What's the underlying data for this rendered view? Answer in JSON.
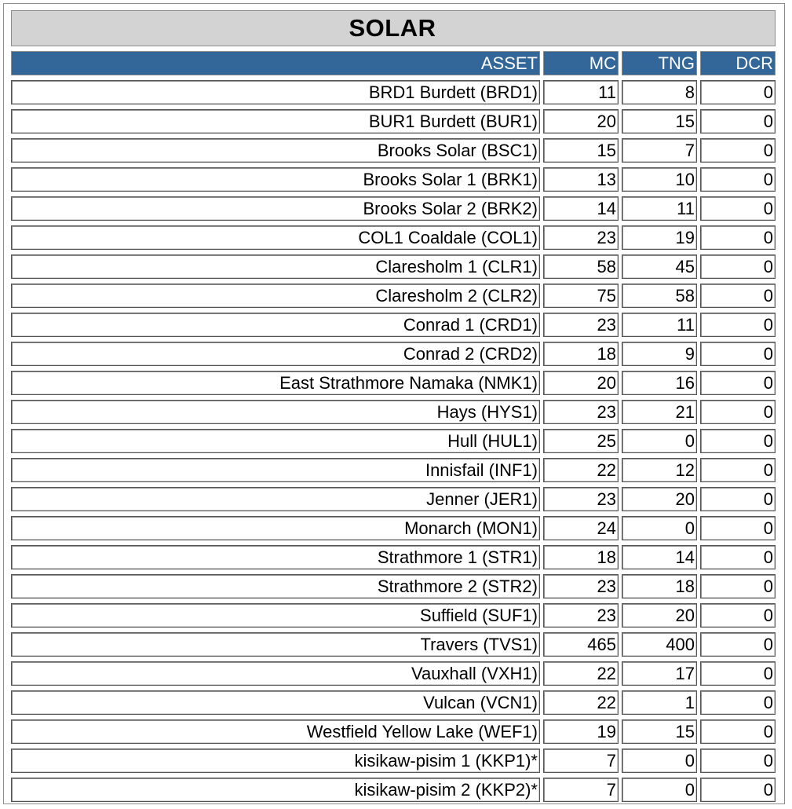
{
  "title": "SOLAR",
  "columns": {
    "asset": "ASSET",
    "mc": "MC",
    "tng": "TNG",
    "dcr": "DCR"
  },
  "colors": {
    "header_bg": "#336699",
    "header_text": "#ffffff",
    "title_bg": "#d3d3d3"
  },
  "rows": [
    {
      "asset": "BRD1 Burdett (BRD1)",
      "mc": "11",
      "tng": "8",
      "dcr": "0"
    },
    {
      "asset": "BUR1 Burdett (BUR1)",
      "mc": "20",
      "tng": "15",
      "dcr": "0"
    },
    {
      "asset": "Brooks Solar (BSC1)",
      "mc": "15",
      "tng": "7",
      "dcr": "0"
    },
    {
      "asset": "Brooks Solar 1 (BRK1)",
      "mc": "13",
      "tng": "10",
      "dcr": "0"
    },
    {
      "asset": "Brooks Solar 2 (BRK2)",
      "mc": "14",
      "tng": "11",
      "dcr": "0"
    },
    {
      "asset": "COL1 Coaldale (COL1)",
      "mc": "23",
      "tng": "19",
      "dcr": "0"
    },
    {
      "asset": "Claresholm 1 (CLR1)",
      "mc": "58",
      "tng": "45",
      "dcr": "0"
    },
    {
      "asset": "Claresholm 2 (CLR2)",
      "mc": "75",
      "tng": "58",
      "dcr": "0"
    },
    {
      "asset": "Conrad 1 (CRD1)",
      "mc": "23",
      "tng": "11",
      "dcr": "0"
    },
    {
      "asset": "Conrad 2 (CRD2)",
      "mc": "18",
      "tng": "9",
      "dcr": "0"
    },
    {
      "asset": "East Strathmore Namaka (NMK1)",
      "mc": "20",
      "tng": "16",
      "dcr": "0"
    },
    {
      "asset": "Hays (HYS1)",
      "mc": "23",
      "tng": "21",
      "dcr": "0"
    },
    {
      "asset": "Hull (HUL1)",
      "mc": "25",
      "tng": "0",
      "dcr": "0"
    },
    {
      "asset": "Innisfail (INF1)",
      "mc": "22",
      "tng": "12",
      "dcr": "0"
    },
    {
      "asset": "Jenner (JER1)",
      "mc": "23",
      "tng": "20",
      "dcr": "0"
    },
    {
      "asset": "Monarch (MON1)",
      "mc": "24",
      "tng": "0",
      "dcr": "0"
    },
    {
      "asset": "Strathmore 1 (STR1)",
      "mc": "18",
      "tng": "14",
      "dcr": "0"
    },
    {
      "asset": "Strathmore 2 (STR2)",
      "mc": "23",
      "tng": "18",
      "dcr": "0"
    },
    {
      "asset": "Suffield (SUF1)",
      "mc": "23",
      "tng": "20",
      "dcr": "0"
    },
    {
      "asset": "Travers (TVS1)",
      "mc": "465",
      "tng": "400",
      "dcr": "0"
    },
    {
      "asset": "Vauxhall (VXH1)",
      "mc": "22",
      "tng": "17",
      "dcr": "0"
    },
    {
      "asset": "Vulcan (VCN1)",
      "mc": "22",
      "tng": "1",
      "dcr": "0"
    },
    {
      "asset": "Westfield Yellow Lake (WEF1)",
      "mc": "19",
      "tng": "15",
      "dcr": "0"
    },
    {
      "asset": "kisikaw-pisim 1 (KKP1)*",
      "mc": "7",
      "tng": "0",
      "dcr": "0"
    },
    {
      "asset": "kisikaw-pisim 2 (KKP2)*",
      "mc": "7",
      "tng": "0",
      "dcr": "0"
    }
  ]
}
